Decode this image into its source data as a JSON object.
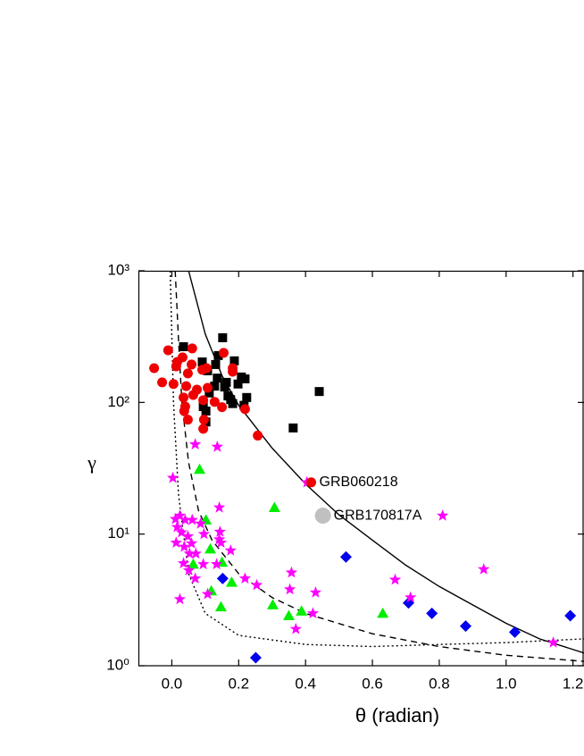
{
  "chart_data": {
    "type": "scatter",
    "xlabel": "θ (radian)",
    "ylabel": "γ",
    "xlim": [
      -0.1,
      1.233
    ],
    "ylim": [
      1,
      1000
    ],
    "yscale": "log",
    "grid": false,
    "xticks": [
      {
        "value": 0,
        "label": "0.0"
      },
      {
        "value": 0.2,
        "label": "0.2"
      },
      {
        "value": 0.4,
        "label": "0.4"
      },
      {
        "value": 0.6,
        "label": "0.6"
      },
      {
        "value": 0.8,
        "label": "0.8"
      },
      {
        "value": 1,
        "label": "1.0"
      },
      {
        "value": 1.2,
        "label": "1.2"
      }
    ],
    "yticks": [
      {
        "value": 1,
        "label": "10⁰"
      },
      {
        "value": 10,
        "label": "10¹"
      },
      {
        "value": 100,
        "label": "10²"
      },
      {
        "value": 1000,
        "label": "10³"
      }
    ],
    "series": [
      {
        "type": "line",
        "style": "solid",
        "color": "#000000",
        "x": [
          0.05,
          0.1,
          0.15,
          0.2,
          0.3,
          0.4,
          0.5,
          0.6,
          0.7,
          0.8,
          0.9,
          1.0,
          1.1,
          1.233
        ],
        "values": [
          1000,
          330,
          160,
          95,
          45,
          24,
          14,
          9,
          5.8,
          4.0,
          2.9,
          2.1,
          1.6,
          1.25
        ]
      },
      {
        "type": "line",
        "style": "dashed",
        "color": "#000000",
        "x": [
          0.01,
          0.02,
          0.03,
          0.05,
          0.08,
          0.12,
          0.2,
          0.3,
          0.4,
          0.6,
          0.8,
          1.0,
          1.233
        ],
        "values": [
          1000,
          300,
          100,
          35,
          15,
          9,
          5,
          3.3,
          2.5,
          1.75,
          1.4,
          1.2,
          1.08
        ]
      },
      {
        "type": "line",
        "style": "dotted",
        "color": "#000000",
        "x": [
          -0.005,
          0.005,
          0.02,
          0.05,
          0.1,
          0.2,
          0.4,
          0.6,
          0.8,
          1.0,
          1.233
        ],
        "values": [
          1000,
          100,
          20,
          5,
          2.5,
          1.7,
          1.45,
          1.4,
          1.45,
          1.5,
          1.6
        ]
      },
      {
        "marker": "square",
        "color": "#000000",
        "x": [
          0.035,
          0.152,
          0.091,
          0.107,
          0.139,
          0.131,
          0.187,
          0.136,
          0.128,
          0.112,
          0.094,
          0.158,
          0.168,
          0.182,
          0.198,
          0.208,
          0.219,
          0.102,
          0.102,
          0.163,
          0.216,
          0.176,
          0.441,
          0.363,
          0.224
        ],
        "values": [
          265,
          310,
          203,
          174,
          227,
          194,
          207,
          153,
          133,
          118,
          93,
          131,
          112,
          98,
          138,
          156,
          151,
          71,
          86,
          142,
          95,
          105,
          121,
          64,
          109
        ]
      },
      {
        "marker": "circle",
        "color": "#ee0000",
        "x": [
          -0.053,
          -0.011,
          0.061,
          0.032,
          0.059,
          0.013,
          0.048,
          0.091,
          -0.029,
          0.005,
          0.043,
          0.075,
          0.104,
          0.035,
          0.064,
          0.094,
          0.128,
          0.15,
          0.182,
          0.182,
          0.107,
          0.037,
          0.04,
          0.096,
          0.048,
          0.094,
          0.219,
          0.257,
          0.155,
          0.016
        ],
        "values": [
          182,
          249,
          257,
          220,
          194,
          188,
          166,
          177,
          142,
          138,
          133,
          125,
          182,
          109,
          114,
          104,
          101,
          92,
          171,
          182,
          129,
          86,
          93,
          74,
          74,
          63,
          89,
          56,
          238,
          203
        ]
      },
      {
        "marker": "triangle",
        "color": "#00ee00",
        "x": [
          0.083,
          0.102,
          0.115,
          0.064,
          0.15,
          0.179,
          0.118,
          0.147,
          0.307,
          0.302,
          0.35,
          0.388,
          0.631
        ],
        "values": [
          31,
          12.8,
          7.7,
          5.9,
          6.1,
          4.3,
          3.7,
          2.8,
          15.9,
          2.9,
          2.4,
          2.6,
          2.5
        ]
      },
      {
        "marker": "diamond",
        "color": "#0000ee",
        "x": [
          0.152,
          0.251,
          0.521,
          0.708,
          0.778,
          0.879,
          1.026,
          1.192
        ],
        "values": [
          4.6,
          1.15,
          6.7,
          3.0,
          2.5,
          2.0,
          1.8,
          2.4
        ]
      },
      {
        "marker": "star",
        "color": "#ff00ff",
        "x": [
          0.003,
          0.07,
          0.136,
          0.142,
          0.404,
          0.81,
          0.933,
          1.141,
          0.668,
          0.714,
          0.358,
          0.353,
          0.43,
          0.422,
          0.371,
          0.254,
          0.219,
          0.176,
          0.144,
          0.142,
          0.096,
          0.086,
          0.011,
          0.024,
          0.04,
          0.061,
          0.016,
          0.029,
          0.048,
          0.013,
          0.037,
          0.059,
          0.072,
          0.053,
          0.035,
          0.051,
          0.094,
          0.07,
          0.024,
          0.107,
          0.134,
          0.147
        ],
        "values": [
          26.7,
          48,
          46,
          15.9,
          24.7,
          13.8,
          5.4,
          1.5,
          4.5,
          3.3,
          5.1,
          3.8,
          3.6,
          2.5,
          1.9,
          4.1,
          4.6,
          7.5,
          10.4,
          9.1,
          10.0,
          12.0,
          13.0,
          13.8,
          12.8,
          12.8,
          11.3,
          10.3,
          9.6,
          8.6,
          8.0,
          8.5,
          7.1,
          7.1,
          6.0,
          5.3,
          5.9,
          4.6,
          3.2,
          3.5,
          5.9,
          8.6
        ]
      },
      {
        "marker": "circle",
        "color": "#ee0000",
        "label": "GRB060218",
        "x": [
          0.417
        ],
        "values": [
          24.7
        ]
      },
      {
        "marker": "bigcircle",
        "color": "#c0c0c0",
        "label": "GRB170817A",
        "x": [
          0.452
        ],
        "values": [
          13.8
        ]
      }
    ]
  }
}
